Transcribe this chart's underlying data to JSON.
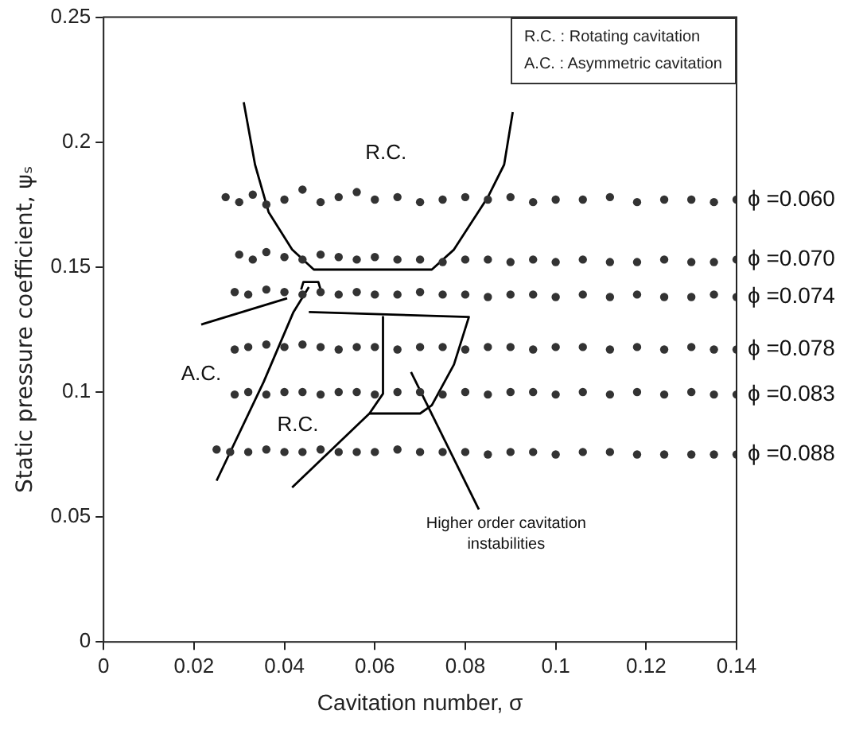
{
  "chart_data": {
    "type": "scatter",
    "xlabel": "Cavitation number, σ",
    "ylabel": "Static pressure coefficient, ψₛ",
    "xlim": [
      0,
      0.14
    ],
    "xticks": [
      0,
      0.02,
      0.04,
      0.06,
      0.08,
      0.1,
      0.12,
      0.14
    ],
    "ylim": [
      0,
      0.25
    ],
    "yticks": [
      0,
      0.05,
      0.1,
      0.15,
      0.2,
      0.25
    ],
    "grid": false,
    "legend": false,
    "marker": "circle",
    "series": [
      {
        "name": "ϕ =0.060",
        "color": "#333333",
        "x": [
          0.027,
          0.03,
          0.033,
          0.036,
          0.04,
          0.044,
          0.048,
          0.052,
          0.056,
          0.06,
          0.065,
          0.07,
          0.075,
          0.08,
          0.085,
          0.09,
          0.095,
          0.1,
          0.106,
          0.112,
          0.118,
          0.124,
          0.13,
          0.135,
          0.14
        ],
        "values": [
          0.178,
          0.176,
          0.179,
          0.175,
          0.177,
          0.181,
          0.176,
          0.178,
          0.18,
          0.177,
          0.178,
          0.176,
          0.177,
          0.178,
          0.177,
          0.178,
          0.176,
          0.177,
          0.177,
          0.178,
          0.176,
          0.177,
          0.177,
          0.176,
          0.177
        ]
      },
      {
        "name": "ϕ =0.070",
        "color": "#333333",
        "x": [
          0.03,
          0.033,
          0.036,
          0.04,
          0.044,
          0.048,
          0.052,
          0.056,
          0.06,
          0.065,
          0.07,
          0.075,
          0.08,
          0.085,
          0.09,
          0.095,
          0.1,
          0.106,
          0.112,
          0.118,
          0.124,
          0.13,
          0.135,
          0.14
        ],
        "values": [
          0.155,
          0.153,
          0.156,
          0.154,
          0.153,
          0.155,
          0.154,
          0.153,
          0.154,
          0.153,
          0.153,
          0.152,
          0.153,
          0.153,
          0.152,
          0.153,
          0.152,
          0.153,
          0.152,
          0.152,
          0.153,
          0.152,
          0.152,
          0.153
        ]
      },
      {
        "name": "ϕ =0.074",
        "color": "#333333",
        "x": [
          0.029,
          0.032,
          0.036,
          0.04,
          0.044,
          0.048,
          0.052,
          0.056,
          0.06,
          0.065,
          0.07,
          0.075,
          0.08,
          0.085,
          0.09,
          0.095,
          0.1,
          0.106,
          0.112,
          0.118,
          0.124,
          0.13,
          0.135,
          0.14
        ],
        "values": [
          0.14,
          0.139,
          0.141,
          0.14,
          0.139,
          0.14,
          0.139,
          0.14,
          0.139,
          0.139,
          0.14,
          0.139,
          0.139,
          0.138,
          0.139,
          0.139,
          0.138,
          0.139,
          0.138,
          0.139,
          0.138,
          0.138,
          0.139,
          0.138
        ]
      },
      {
        "name": "ϕ =0.078",
        "color": "#333333",
        "x": [
          0.029,
          0.032,
          0.036,
          0.04,
          0.044,
          0.048,
          0.052,
          0.056,
          0.06,
          0.065,
          0.07,
          0.075,
          0.08,
          0.085,
          0.09,
          0.095,
          0.1,
          0.106,
          0.112,
          0.118,
          0.124,
          0.13,
          0.135,
          0.14
        ],
        "values": [
          0.117,
          0.118,
          0.119,
          0.118,
          0.119,
          0.118,
          0.117,
          0.118,
          0.118,
          0.117,
          0.118,
          0.118,
          0.117,
          0.118,
          0.118,
          0.117,
          0.118,
          0.118,
          0.117,
          0.118,
          0.117,
          0.118,
          0.117,
          0.117
        ]
      },
      {
        "name": "ϕ =0.083",
        "color": "#333333",
        "x": [
          0.029,
          0.032,
          0.036,
          0.04,
          0.044,
          0.048,
          0.052,
          0.056,
          0.06,
          0.065,
          0.07,
          0.075,
          0.08,
          0.085,
          0.09,
          0.095,
          0.1,
          0.106,
          0.112,
          0.118,
          0.124,
          0.13,
          0.135,
          0.14
        ],
        "values": [
          0.099,
          0.1,
          0.099,
          0.1,
          0.1,
          0.099,
          0.1,
          0.1,
          0.099,
          0.1,
          0.1,
          0.099,
          0.1,
          0.099,
          0.1,
          0.1,
          0.099,
          0.1,
          0.099,
          0.1,
          0.099,
          0.1,
          0.099,
          0.099
        ]
      },
      {
        "name": "ϕ =0.088",
        "color": "#333333",
        "x": [
          0.025,
          0.028,
          0.032,
          0.036,
          0.04,
          0.044,
          0.048,
          0.052,
          0.056,
          0.06,
          0.065,
          0.07,
          0.075,
          0.08,
          0.085,
          0.09,
          0.095,
          0.1,
          0.106,
          0.112,
          0.118,
          0.124,
          0.13,
          0.135,
          0.14
        ],
        "values": [
          0.077,
          0.076,
          0.076,
          0.077,
          0.076,
          0.076,
          0.077,
          0.076,
          0.076,
          0.076,
          0.077,
          0.076,
          0.076,
          0.076,
          0.075,
          0.076,
          0.076,
          0.075,
          0.076,
          0.076,
          0.075,
          0.075,
          0.075,
          0.075,
          0.075
        ]
      },
      {
        "type": "line",
        "marker": "none",
        "color": "#000000",
        "x": [
          0.031,
          0.0335,
          0.0365,
          0.0417,
          0.0465,
          0.0726,
          0.0775,
          0.085,
          0.0886,
          0.0905
        ],
        "values": [
          0.216,
          0.191,
          0.172,
          0.157,
          0.149,
          0.149,
          0.157,
          0.178,
          0.191,
          0.212
        ]
      },
      {
        "type": "line",
        "marker": "none",
        "color": "#000000",
        "x": [
          0.0437,
          0.0442,
          0.0475,
          0.048
        ],
        "values": [
          0.141,
          0.144,
          0.144,
          0.141
        ]
      },
      {
        "type": "line",
        "marker": "none",
        "color": "#000000",
        "x": [
          0.0216,
          0.0406
        ],
        "values": [
          0.127,
          0.1375
        ]
      },
      {
        "type": "line",
        "marker": "none",
        "color": "#000000",
        "x": [
          0.025,
          0.0354,
          0.042,
          0.0454
        ],
        "values": [
          0.0645,
          0.104,
          0.132,
          0.142
        ]
      },
      {
        "type": "line",
        "marker": "none",
        "color": "#000000",
        "x": [
          0.0454,
          0.0808,
          0.0775,
          0.0726,
          0.07,
          0.0588
        ],
        "values": [
          0.132,
          0.13,
          0.111,
          0.0947,
          0.0914,
          0.0914
        ]
      },
      {
        "type": "line",
        "marker": "none",
        "color": "#000000",
        "x": [
          0.0618,
          0.0618,
          0.0588,
          0.0417
        ],
        "values": [
          0.13,
          0.0993,
          0.0914,
          0.0618
        ]
      },
      {
        "type": "line",
        "marker": "none",
        "color": "#000000",
        "x": [
          0.068,
          0.083
        ],
        "values": [
          0.108,
          0.053
        ]
      }
    ],
    "annotations": [
      "R.C. : Rotating cavitation",
      "A.C. : Asymmetric cavitation",
      "R.C.",
      "A.C.",
      "R.C.",
      "Higher order cavitation instabilities"
    ]
  }
}
